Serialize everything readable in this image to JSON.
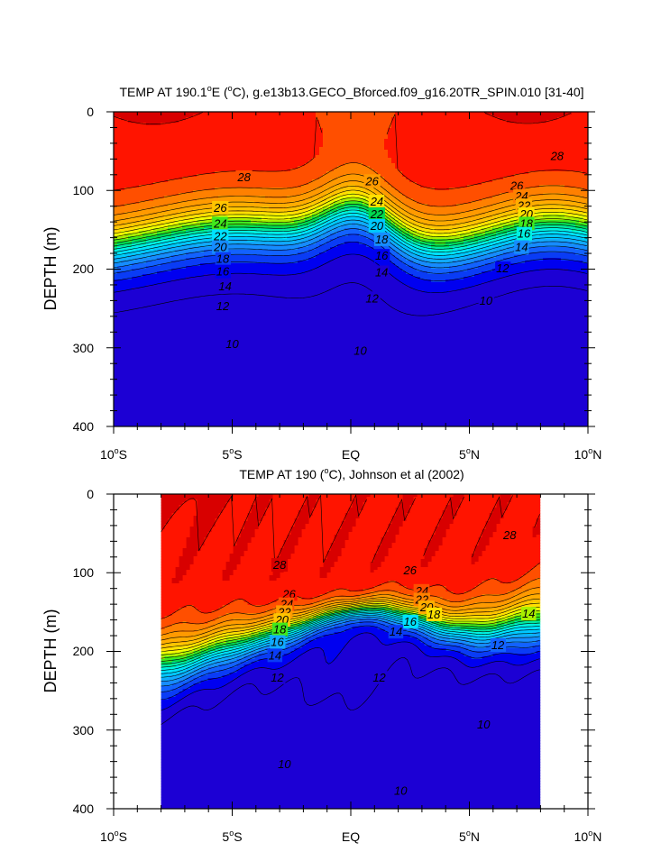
{
  "chart_data": [
    {
      "type": "contour",
      "title": "TEMP AT 190.1°E (°C), g.e13b13.GECO_Bforced.f09_g16.20TR_SPIN.010 [31-40]",
      "title_parts": {
        "prefix": "TEMP AT 190.1",
        "deg": "o",
        "mid": "E (",
        "unit": "C), g.e13b13.GECO_Bforced.f09_g16.20TR_SPIN.010 [31-40]"
      },
      "xlabel": "",
      "ylabel": "DEPTH (m)",
      "x_tick_labels": [
        {
          "num": "10",
          "sup": "o",
          "hemi": "S",
          "lat": -10
        },
        {
          "num": "5",
          "sup": "o",
          "hemi": "S",
          "lat": -5
        },
        {
          "num": "EQ",
          "sup": "",
          "hemi": "",
          "lat": 0
        },
        {
          "num": "5",
          "sup": "o",
          "hemi": "N",
          "lat": 5
        },
        {
          "num": "10",
          "sup": "o",
          "hemi": "N",
          "lat": 10
        }
      ],
      "y_ticks": [
        "0",
        "100",
        "200",
        "300",
        "400"
      ],
      "xlim": [
        -10,
        10
      ],
      "ylim": [
        0,
        400
      ],
      "data_xlim": [
        -10,
        10
      ],
      "levels": [
        8,
        9,
        10,
        11,
        12,
        13,
        14,
        15,
        16,
        17,
        18,
        19,
        20,
        21,
        22,
        23,
        24,
        25,
        26,
        27,
        28,
        29
      ],
      "contour_labels": [
        {
          "text": "28",
          "lat": -4.5,
          "depth": 83
        },
        {
          "text": "26",
          "lat": -5.5,
          "depth": 122
        },
        {
          "text": "24",
          "lat": -5.5,
          "depth": 142
        },
        {
          "text": "22",
          "lat": -5.5,
          "depth": 158
        },
        {
          "text": "20",
          "lat": -5.5,
          "depth": 172
        },
        {
          "text": "18",
          "lat": -5.4,
          "depth": 187
        },
        {
          "text": "16",
          "lat": -5.4,
          "depth": 203
        },
        {
          "text": "14",
          "lat": -5.3,
          "depth": 222
        },
        {
          "text": "12",
          "lat": -5.4,
          "depth": 247
        },
        {
          "text": "10",
          "lat": -5.0,
          "depth": 295
        },
        {
          "text": "26",
          "lat": 0.9,
          "depth": 88
        },
        {
          "text": "24",
          "lat": 1.1,
          "depth": 114
        },
        {
          "text": "22",
          "lat": 1.1,
          "depth": 130
        },
        {
          "text": "20",
          "lat": 1.1,
          "depth": 145
        },
        {
          "text": "18",
          "lat": 1.3,
          "depth": 162
        },
        {
          "text": "16",
          "lat": 1.3,
          "depth": 183
        },
        {
          "text": "14",
          "lat": 1.3,
          "depth": 204
        },
        {
          "text": "12",
          "lat": 0.9,
          "depth": 237
        },
        {
          "text": "10",
          "lat": 0.4,
          "depth": 304
        },
        {
          "text": "28",
          "lat": 8.7,
          "depth": 56
        },
        {
          "text": "26",
          "lat": 7.0,
          "depth": 94
        },
        {
          "text": "24",
          "lat": 7.2,
          "depth": 107
        },
        {
          "text": "22",
          "lat": 7.3,
          "depth": 119
        },
        {
          "text": "20",
          "lat": 7.4,
          "depth": 130
        },
        {
          "text": "18",
          "lat": 7.4,
          "depth": 142
        },
        {
          "text": "16",
          "lat": 7.3,
          "depth": 155
        },
        {
          "text": "14",
          "lat": 7.2,
          "depth": 172
        },
        {
          "text": "12",
          "lat": 6.4,
          "depth": 199
        },
        {
          "text": "10",
          "lat": 5.7,
          "depth": 240
        }
      ]
    },
    {
      "type": "contour",
      "title": "TEMP AT 190 (°C), Johnson et al (2002)",
      "title_parts": {
        "prefix": "TEMP AT 190 (",
        "deg": "o",
        "mid": "",
        "unit": "C), Johnson et al (2002)"
      },
      "xlabel": "",
      "ylabel": "DEPTH (m)",
      "x_tick_labels": [
        {
          "num": "10",
          "sup": "o",
          "hemi": "S",
          "lat": -10
        },
        {
          "num": "5",
          "sup": "o",
          "hemi": "S",
          "lat": -5
        },
        {
          "num": "EQ",
          "sup": "",
          "hemi": "",
          "lat": 0
        },
        {
          "num": "5",
          "sup": "o",
          "hemi": "N",
          "lat": 5
        },
        {
          "num": "10",
          "sup": "o",
          "hemi": "N",
          "lat": 10
        }
      ],
      "y_ticks": [
        "0",
        "100",
        "200",
        "300",
        "400"
      ],
      "xlim": [
        -10,
        10
      ],
      "ylim": [
        0,
        400
      ],
      "data_xlim": [
        -8,
        8
      ],
      "levels": [
        8,
        9,
        10,
        11,
        12,
        13,
        14,
        15,
        16,
        17,
        18,
        19,
        20,
        21,
        22,
        23,
        24,
        25,
        26,
        27,
        28,
        29
      ],
      "contour_labels": [
        {
          "text": "28",
          "lat": -3.0,
          "depth": 90
        },
        {
          "text": "26",
          "lat": -2.6,
          "depth": 127
        },
        {
          "text": "24",
          "lat": -2.7,
          "depth": 140
        },
        {
          "text": "22",
          "lat": -2.8,
          "depth": 150
        },
        {
          "text": "20",
          "lat": -2.9,
          "depth": 160
        },
        {
          "text": "18",
          "lat": -3.0,
          "depth": 172
        },
        {
          "text": "16",
          "lat": -3.1,
          "depth": 188
        },
        {
          "text": "14",
          "lat": -3.2,
          "depth": 205
        },
        {
          "text": "12",
          "lat": -3.1,
          "depth": 233
        },
        {
          "text": "10",
          "lat": -2.8,
          "depth": 343
        },
        {
          "text": "26",
          "lat": 2.5,
          "depth": 97
        },
        {
          "text": "24",
          "lat": 3.0,
          "depth": 123
        },
        {
          "text": "22",
          "lat": 3.0,
          "depth": 134
        },
        {
          "text": "20",
          "lat": 3.2,
          "depth": 144
        },
        {
          "text": "18",
          "lat": 3.5,
          "depth": 153
        },
        {
          "text": "16",
          "lat": 2.5,
          "depth": 162
        },
        {
          "text": "14",
          "lat": 1.9,
          "depth": 175
        },
        {
          "text": "12",
          "lat": 1.2,
          "depth": 233
        },
        {
          "text": "10",
          "lat": 2.1,
          "depth": 377
        },
        {
          "text": "28",
          "lat": 6.7,
          "depth": 52
        },
        {
          "text": "14",
          "lat": 7.5,
          "depth": 152
        },
        {
          "text": "12",
          "lat": 6.2,
          "depth": 192
        },
        {
          "text": "10",
          "lat": 5.6,
          "depth": 293
        }
      ]
    }
  ],
  "colorscale": [
    {
      "min": 8,
      "color": "#1c00d4"
    },
    {
      "min": 9,
      "color": "#0000f0"
    },
    {
      "min": 10,
      "color": "#0a3cf5"
    },
    {
      "min": 11,
      "color": "#1262ff"
    },
    {
      "min": 12,
      "color": "#168cff"
    },
    {
      "min": 13,
      "color": "#10aaff"
    },
    {
      "min": 14,
      "color": "#00c8ff"
    },
    {
      "min": 15,
      "color": "#00e2ff"
    },
    {
      "min": 16,
      "color": "#00f2e2"
    },
    {
      "min": 17,
      "color": "#00e8a0"
    },
    {
      "min": 18,
      "color": "#00d850"
    },
    {
      "min": 19,
      "color": "#40e81c"
    },
    {
      "min": 20,
      "color": "#a8f000"
    },
    {
      "min": 21,
      "color": "#eeff00"
    },
    {
      "min": 22,
      "color": "#ffe000"
    },
    {
      "min": 23,
      "color": "#ffc400"
    },
    {
      "min": 24,
      "color": "#ffac00"
    },
    {
      "min": 25,
      "color": "#ff9a00"
    },
    {
      "min": 26,
      "color": "#ff8000"
    },
    {
      "min": 27,
      "color": "#ff4f00"
    },
    {
      "min": 28,
      "color": "#ff1400"
    },
    {
      "min": 29,
      "color": "#d80000"
    }
  ]
}
